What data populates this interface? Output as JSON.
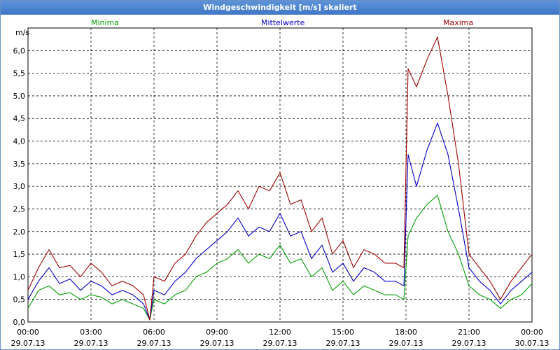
{
  "window": {
    "title": "Windgeschwindigkeit [m/s] skaliert"
  },
  "colors": {
    "minima": "#00a000",
    "mittel": "#0000c8",
    "maxima": "#a00000",
    "grid": "#000000"
  },
  "chart_data": {
    "type": "line",
    "ylabel": "m/s",
    "ylim": [
      0,
      6.5
    ],
    "grid": true,
    "legend_placement": "top",
    "y_ticks": [
      "0,0",
      "0,5",
      "1,0",
      "1,5",
      "2,0",
      "2,5",
      "3,0",
      "3,5",
      "4,0",
      "4,5",
      "5,0",
      "5,5",
      "6,0"
    ],
    "y_tick_values": [
      0,
      0.5,
      1,
      1.5,
      2,
      2.5,
      3,
      3.5,
      4,
      4.5,
      5,
      5.5,
      6
    ],
    "xlim": [
      0,
      24
    ],
    "x_ticks": [
      {
        "x": 0,
        "time": "00:00",
        "date": "29.07.13"
      },
      {
        "x": 3,
        "time": "03:00",
        "date": "29.07.13"
      },
      {
        "x": 6,
        "time": "06:00",
        "date": "29.07.13"
      },
      {
        "x": 9,
        "time": "09:00",
        "date": "29.07.13"
      },
      {
        "x": 12,
        "time": "12:00",
        "date": "29.07.13"
      },
      {
        "x": 15,
        "time": "15:00",
        "date": "29.07.13"
      },
      {
        "x": 18,
        "time": "18:00",
        "date": "29.07.13"
      },
      {
        "x": 21,
        "time": "21:00",
        "date": "29.07.13"
      },
      {
        "x": 24,
        "time": "00:00",
        "date": "30.07.13"
      }
    ],
    "x": [
      0,
      0.5,
      1,
      1.5,
      2,
      2.5,
      3,
      3.5,
      4,
      4.5,
      5,
      5.5,
      5.8,
      6,
      6.5,
      7,
      7.5,
      8,
      8.5,
      9,
      9.5,
      10,
      10.5,
      11,
      11.5,
      12,
      12.5,
      13,
      13.5,
      14,
      14.5,
      15,
      15.5,
      16,
      16.5,
      17,
      17.5,
      17.9,
      18.1,
      18.5,
      19,
      19.5,
      20,
      20.5,
      21,
      21.5,
      22,
      22.5,
      23,
      23.5,
      24
    ],
    "series": [
      {
        "name": "Minima",
        "values": [
          0.3,
          0.7,
          0.8,
          0.6,
          0.65,
          0.5,
          0.6,
          0.55,
          0.4,
          0.5,
          0.4,
          0.3,
          0.05,
          0.5,
          0.4,
          0.6,
          0.7,
          1.0,
          1.1,
          1.3,
          1.4,
          1.6,
          1.3,
          1.5,
          1.4,
          1.7,
          1.3,
          1.4,
          1.0,
          1.2,
          0.7,
          0.9,
          0.6,
          0.8,
          0.7,
          0.6,
          0.6,
          0.5,
          1.9,
          2.3,
          2.6,
          2.8,
          2.0,
          1.5,
          0.8,
          0.6,
          0.5,
          0.3,
          0.5,
          0.6,
          0.85
        ]
      },
      {
        "name": "Mittelwerte",
        "values": [
          0.5,
          0.9,
          1.2,
          0.85,
          0.95,
          0.7,
          0.9,
          0.8,
          0.6,
          0.7,
          0.6,
          0.4,
          0.05,
          0.7,
          0.6,
          0.9,
          1.1,
          1.4,
          1.6,
          1.8,
          2.0,
          2.3,
          1.9,
          2.1,
          2.0,
          2.4,
          1.9,
          2.0,
          1.4,
          1.7,
          1.1,
          1.3,
          0.9,
          1.2,
          1.1,
          0.9,
          0.9,
          0.8,
          3.7,
          3.0,
          3.8,
          4.4,
          3.7,
          2.5,
          1.2,
          0.9,
          0.7,
          0.4,
          0.7,
          0.9,
          1.1
        ]
      },
      {
        "name": "Maxima",
        "values": [
          0.7,
          1.2,
          1.6,
          1.2,
          1.25,
          1.0,
          1.3,
          1.1,
          0.8,
          0.9,
          0.8,
          0.6,
          0.05,
          1.0,
          0.9,
          1.3,
          1.5,
          1.9,
          2.2,
          2.4,
          2.6,
          2.9,
          2.5,
          3.0,
          2.9,
          3.3,
          2.6,
          2.7,
          2.0,
          2.3,
          1.5,
          1.8,
          1.2,
          1.6,
          1.5,
          1.3,
          1.3,
          1.2,
          5.6,
          5.2,
          5.8,
          6.3,
          5.0,
          3.5,
          1.5,
          1.2,
          0.9,
          0.5,
          0.9,
          1.2,
          1.5
        ]
      }
    ]
  }
}
